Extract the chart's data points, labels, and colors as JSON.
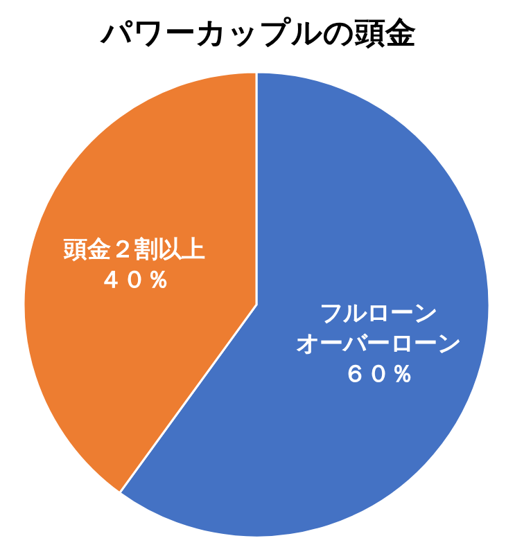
{
  "chart_data": {
    "type": "pie",
    "title": "パワーカップルの頭金",
    "categories": [
      "フルローンオーバーローン",
      "頭金２割以上"
    ],
    "values": [
      60,
      40
    ],
    "colors": [
      "#4472c4",
      "#ed7d31"
    ],
    "value_labels": [
      "６０％",
      "４０％"
    ]
  }
}
